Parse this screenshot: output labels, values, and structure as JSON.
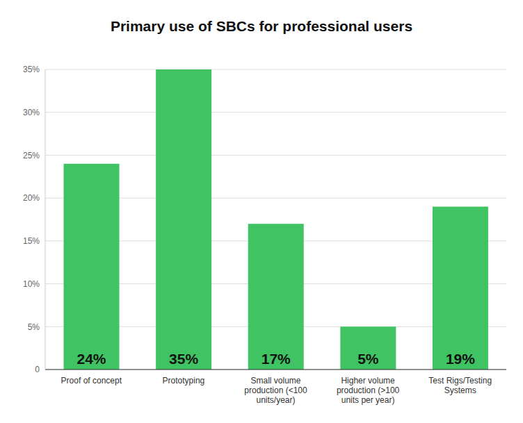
{
  "chart_data": {
    "type": "bar",
    "title": "Primary use of SBCs for professional users",
    "categories": [
      "Proof of concept",
      "Prototyping",
      "Small volume production (<100 units/year)",
      "Higher volume production (>100 units per year)",
      "Test Rigs/Testing Systems"
    ],
    "values": [
      24,
      35,
      17,
      5,
      19
    ],
    "value_labels": [
      "24%",
      "35%",
      "17%",
      "5%",
      "19%"
    ],
    "color": "#40c463",
    "ylim": [
      0,
      35
    ],
    "yticks": [
      0,
      {
        "value": 5,
        "label": "5%"
      },
      {
        "value": 10,
        "label": "10%"
      },
      {
        "value": 15,
        "label": "15%"
      },
      {
        "value": 20,
        "label": "20%"
      },
      {
        "value": 25,
        "label": "25%"
      },
      {
        "value": 30,
        "label": "30%"
      },
      {
        "value": 35,
        "label": "35%"
      }
    ],
    "grid": true,
    "data_labels": true
  }
}
